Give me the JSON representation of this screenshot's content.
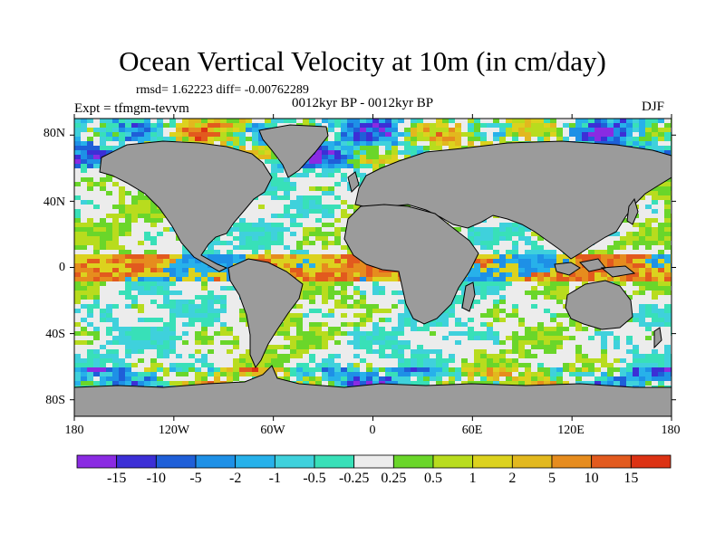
{
  "title": "Ocean Vertical Velocity at 10m (in cm/day)",
  "stats": "rmsd= 1.62223 diff= -0.00762289",
  "period": "0012kyr BP - 0012kyr BP",
  "experiment": "Expt = tfmgm-tevvm",
  "season": "DJF",
  "lat_ticks": [
    "80N",
    "40N",
    "0",
    "40S",
    "80S"
  ],
  "lon_ticks": [
    "180",
    "120W",
    "60W",
    "0",
    "60E",
    "120E",
    "180"
  ],
  "colorbar": {
    "labels": [
      "-15",
      "-10",
      "-5",
      "-2",
      "-1",
      "-0.5",
      "-0.25",
      "0.25",
      "0.5",
      "1",
      "2",
      "5",
      "10",
      "15"
    ],
    "colors": [
      "#8a2be2",
      "#3c2fd6",
      "#1f5fd8",
      "#1e90e6",
      "#27b1ea",
      "#3fd1dc",
      "#38e0b8",
      "#ececec",
      "#6ad62a",
      "#b8dc1e",
      "#dcd21e",
      "#e2b81e",
      "#e68c1e",
      "#e25a1e",
      "#dc3214"
    ]
  },
  "colors": {
    "land": "#9b9b9b",
    "ocean_neutral": "#ececec"
  }
}
